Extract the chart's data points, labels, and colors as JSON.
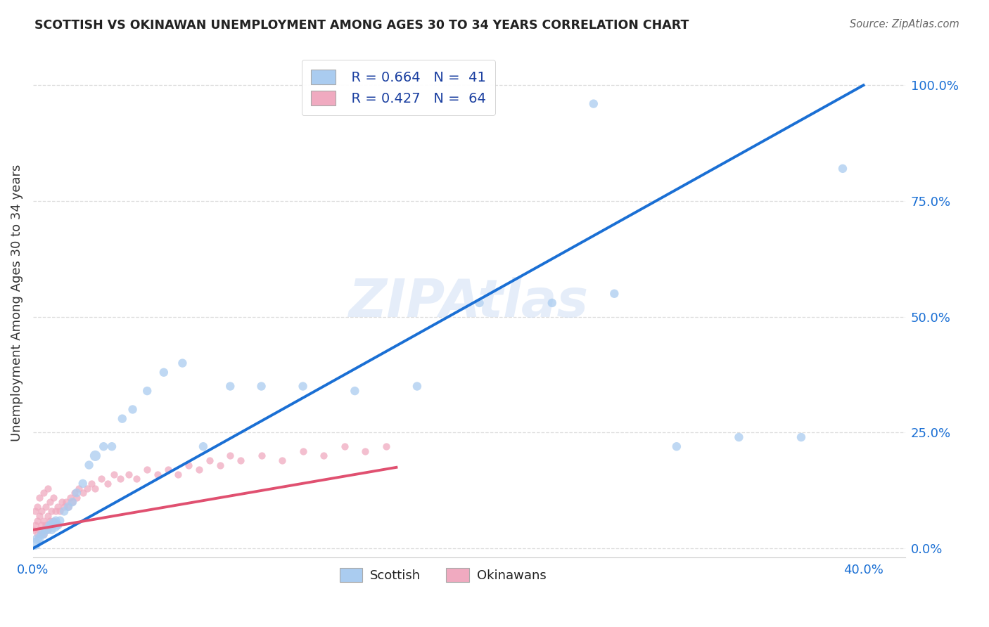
{
  "title": "SCOTTISH VS OKINAWAN UNEMPLOYMENT AMONG AGES 30 TO 34 YEARS CORRELATION CHART",
  "source": "Source: ZipAtlas.com",
  "ylabel": "Unemployment Among Ages 30 to 34 years",
  "xlim": [
    0.0,
    0.42
  ],
  "ylim": [
    -0.02,
    1.08
  ],
  "xtick_positions": [
    0.0,
    0.05,
    0.1,
    0.15,
    0.2,
    0.25,
    0.3,
    0.35,
    0.4
  ],
  "xtick_labels": [
    "0.0%",
    "",
    "",
    "",
    "",
    "",
    "",
    "",
    "40.0%"
  ],
  "ytick_positions": [
    0.0,
    0.25,
    0.5,
    0.75,
    1.0
  ],
  "ytick_labels": [
    "0.0%",
    "25.0%",
    "50.0%",
    "75.0%",
    "100.0%"
  ],
  "legend_r_scottish": "R = 0.664",
  "legend_n_scottish": "N =  41",
  "legend_r_okinawan": "R = 0.427",
  "legend_n_okinawan": "N =  64",
  "scottish_color": "#aaccf0",
  "okinawan_color": "#f0aac0",
  "scottish_line_color": "#1a6fd4",
  "okinawan_line_color": "#e05070",
  "diagonal_color": "#ccbbcc",
  "watermark_color": "#d0dff5",
  "scottish_x": [
    0.001,
    0.002,
    0.003,
    0.004,
    0.005,
    0.006,
    0.007,
    0.008,
    0.009,
    0.01,
    0.011,
    0.012,
    0.013,
    0.015,
    0.017,
    0.019,
    0.021,
    0.024,
    0.027,
    0.03,
    0.034,
    0.038,
    0.043,
    0.048,
    0.055,
    0.063,
    0.072,
    0.082,
    0.095,
    0.11,
    0.13,
    0.155,
    0.185,
    0.215,
    0.25,
    0.28,
    0.31,
    0.34,
    0.37,
    0.39,
    0.27
  ],
  "scottish_y": [
    0.01,
    0.02,
    0.02,
    0.03,
    0.03,
    0.04,
    0.04,
    0.05,
    0.04,
    0.05,
    0.06,
    0.05,
    0.06,
    0.08,
    0.09,
    0.1,
    0.12,
    0.14,
    0.18,
    0.2,
    0.22,
    0.22,
    0.28,
    0.3,
    0.34,
    0.38,
    0.4,
    0.22,
    0.35,
    0.35,
    0.35,
    0.34,
    0.35,
    0.53,
    0.53,
    0.55,
    0.22,
    0.24,
    0.24,
    0.82,
    0.96
  ],
  "scottish_sizes": [
    150,
    100,
    80,
    80,
    80,
    80,
    80,
    80,
    80,
    200,
    80,
    80,
    80,
    80,
    80,
    80,
    80,
    80,
    80,
    120,
    80,
    80,
    80,
    80,
    80,
    80,
    80,
    80,
    80,
    80,
    80,
    80,
    80,
    80,
    80,
    80,
    80,
    80,
    80,
    80,
    80
  ],
  "okinawan_x": [
    0.0,
    0.001,
    0.001,
    0.002,
    0.002,
    0.002,
    0.003,
    0.003,
    0.003,
    0.004,
    0.004,
    0.005,
    0.005,
    0.005,
    0.006,
    0.006,
    0.007,
    0.007,
    0.007,
    0.008,
    0.008,
    0.009,
    0.009,
    0.01,
    0.01,
    0.011,
    0.012,
    0.013,
    0.014,
    0.015,
    0.016,
    0.017,
    0.018,
    0.019,
    0.02,
    0.021,
    0.022,
    0.024,
    0.026,
    0.028,
    0.03,
    0.033,
    0.036,
    0.039,
    0.042,
    0.046,
    0.05,
    0.055,
    0.06,
    0.065,
    0.07,
    0.075,
    0.08,
    0.085,
    0.09,
    0.095,
    0.1,
    0.11,
    0.12,
    0.13,
    0.14,
    0.15,
    0.16,
    0.17
  ],
  "okinawan_y": [
    0.04,
    0.05,
    0.08,
    0.03,
    0.06,
    0.09,
    0.04,
    0.07,
    0.11,
    0.05,
    0.08,
    0.03,
    0.06,
    0.12,
    0.05,
    0.09,
    0.04,
    0.07,
    0.13,
    0.06,
    0.1,
    0.05,
    0.08,
    0.06,
    0.11,
    0.08,
    0.09,
    0.08,
    0.1,
    0.09,
    0.1,
    0.09,
    0.11,
    0.1,
    0.12,
    0.11,
    0.13,
    0.12,
    0.13,
    0.14,
    0.13,
    0.15,
    0.14,
    0.16,
    0.15,
    0.16,
    0.15,
    0.17,
    0.16,
    0.17,
    0.16,
    0.18,
    0.17,
    0.19,
    0.18,
    0.2,
    0.19,
    0.2,
    0.19,
    0.21,
    0.2,
    0.22,
    0.21,
    0.22
  ],
  "scottish_line_x": [
    0.0,
    0.4
  ],
  "scottish_line_y": [
    0.0,
    1.0
  ],
  "okinawan_line_x": [
    0.0,
    0.175
  ],
  "okinawan_line_y": [
    0.04,
    0.175
  ]
}
